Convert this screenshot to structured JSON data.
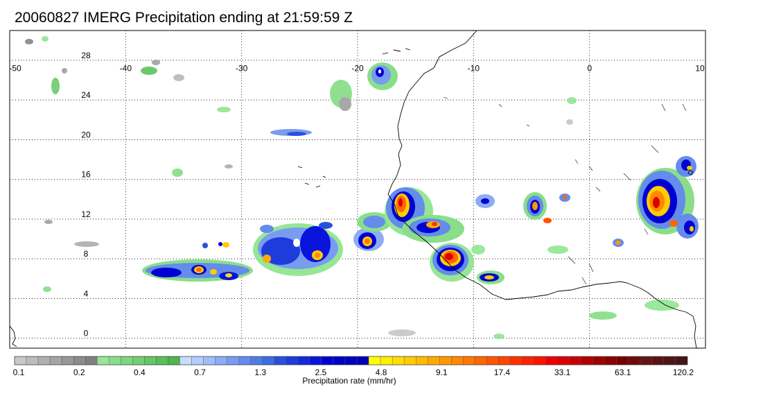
{
  "title": "20060827 IMERG Precipitation ending at 21:59:59 Z",
  "map": {
    "lon_range": [
      -50,
      10
    ],
    "lat_range": [
      -1,
      31
    ],
    "lon_ticks": [
      "-50",
      "-40",
      "-30",
      "-20",
      "-10",
      "0",
      "10"
    ],
    "lat_ticks": [
      "28",
      "24",
      "20",
      "16",
      "12",
      "8",
      "4",
      "0"
    ],
    "lon_values": [
      -50,
      -40,
      -30,
      -20,
      -10,
      0,
      10
    ],
    "lat_values": [
      28,
      24,
      20,
      16,
      12,
      8,
      4,
      0
    ],
    "gridlines": "dotted"
  },
  "colorbar": {
    "title": "Precipitation rate (mm/hr)",
    "labels": [
      "0.1",
      "0.2",
      "0.4",
      "0.7",
      "1.3",
      "2.5",
      "4.8",
      "9.1",
      "17.4",
      "33.1",
      "63.1",
      "120.2"
    ],
    "colors": [
      "#c8c8c8",
      "#bcbcbc",
      "#b0b0b0",
      "#a4a4a4",
      "#989898",
      "#8c8c8c",
      "#808080",
      "#96e696",
      "#8ade8a",
      "#7ed67e",
      "#72ce72",
      "#66c666",
      "#5abe5a",
      "#4eb64e",
      "#c8dcff",
      "#b4ccff",
      "#a0bcfa",
      "#8cacf5",
      "#789cf0",
      "#648ceb",
      "#507ce6",
      "#3c6ce1",
      "#2850dc",
      "#1e3cdc",
      "#1428dc",
      "#0a14dc",
      "#0000d2",
      "#0000c8",
      "#0000be",
      "#0000b4",
      "#ffff00",
      "#ffee00",
      "#ffdd00",
      "#ffcc00",
      "#ffbb00",
      "#ffaa00",
      "#ff9900",
      "#ff8800",
      "#ff7700",
      "#ff6600",
      "#ff5500",
      "#ff4400",
      "#ff3300",
      "#ff2200",
      "#ff1100",
      "#ee0000",
      "#dc0000",
      "#c80000",
      "#b40000",
      "#a00000",
      "#8c0000",
      "#780000",
      "#6e0a0a",
      "#641414",
      "#5a1414",
      "#501414",
      "#461414"
    ]
  },
  "precip_cells": [
    {
      "lon": -26.5,
      "lat": 21.0,
      "level": "light-moderate"
    },
    {
      "lon": -16.4,
      "lat": 14.0,
      "level": "heavy"
    },
    {
      "lon": -13.7,
      "lat": 11.5,
      "level": "heavy"
    },
    {
      "lon": -12.3,
      "lat": 8.3,
      "level": "very-heavy"
    },
    {
      "lon": 6.5,
      "lat": 13.5,
      "level": "heavy"
    },
    {
      "lon": -33.7,
      "lat": 7.2,
      "level": "moderate"
    },
    {
      "lon": -26.0,
      "lat": 9.7,
      "level": "moderate"
    },
    {
      "lon": -19.3,
      "lat": 10.3,
      "level": "heavy"
    }
  ]
}
